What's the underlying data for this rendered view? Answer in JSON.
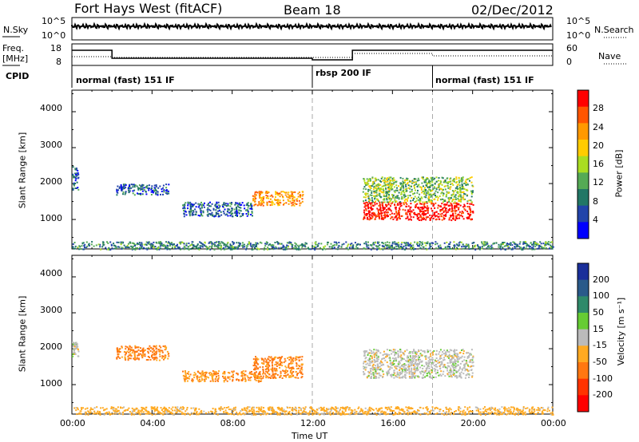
{
  "header": {
    "radar": "Fort Hays West (fitACF)",
    "beam": "Beam 18",
    "date": "02/Dec/2012"
  },
  "noise_panel": {
    "left_label": "N.Sky",
    "right_label": "N.Search",
    "left_ticks": [
      "10^5",
      "10^0"
    ],
    "right_ticks": [
      "10^5",
      "10^0"
    ]
  },
  "freq_panel": {
    "left_label_1": "Freq.",
    "left_label_2": "[MHz]",
    "right_label": "Nave",
    "left_ticks": [
      "18",
      "8"
    ],
    "right_ticks": [
      "60",
      "0"
    ]
  },
  "cpid": {
    "label": "CPID",
    "modes": [
      {
        "name": "normal (fast) 151 IF",
        "start": 0
      },
      {
        "name": "rbsp 200 IF",
        "start": 12
      },
      {
        "name": "normal (fast) 151 IF",
        "start": 18
      }
    ]
  },
  "power_panel": {
    "ylabel": "Slant Range [km]",
    "cbar_label": "Power [dB]",
    "cbar_ticks": [
      "28",
      "24",
      "20",
      "16",
      "12",
      "8",
      "4"
    ],
    "cbar_colors": [
      "#ff0000",
      "#ff5500",
      "#ff9900",
      "#ffcc00",
      "#aadd22",
      "#55aa55",
      "#227766",
      "#2244aa",
      "#0000ff"
    ]
  },
  "velocity_panel": {
    "ylabel": "Velocity [m s⁻¹]",
    "ylabel_axis": "Slant Range [km]",
    "cbar_ticks": [
      "200",
      "100",
      "50",
      "15",
      "-15",
      "-50",
      "-100",
      "-200"
    ],
    "cbar_colors": [
      "#1a2f9a",
      "#2a5a8a",
      "#2f8a6a",
      "#66cc33",
      "#bbbbbb",
      "#ffaa22",
      "#ff7711",
      "#ff3300",
      "#ff0000"
    ]
  },
  "x_axis": {
    "label": "Time UT",
    "ticks": [
      "00:00",
      "04:00",
      "08:00",
      "12:00",
      "16:00",
      "20:00",
      "00:00"
    ]
  },
  "y_axis_ticks": [
    "4000",
    "3000",
    "2000",
    "1000"
  ],
  "chart_data": [
    {
      "type": "heatmap",
      "title": "Fort Hays West (fitACF) Beam 18",
      "xlabel": "Time UT",
      "ylabel": "Slant Range [km]",
      "xlim": [
        0,
        24
      ],
      "ylim": [
        180,
        4600
      ],
      "colorbar": "Power [dB]",
      "features": [
        {
          "t": [
            0,
            0.3
          ],
          "range": [
            1800,
            2500
          ],
          "power": 6
        },
        {
          "t": [
            2.2,
            4.8
          ],
          "range": [
            1700,
            2000
          ],
          "power": 6
        },
        {
          "t": [
            5.5,
            9
          ],
          "range": [
            1100,
            1500
          ],
          "power": 6
        },
        {
          "t": [
            9,
            11.5
          ],
          "range": [
            1400,
            1800
          ],
          "power": 20
        },
        {
          "t": [
            14.5,
            20
          ],
          "range": [
            1000,
            1500
          ],
          "power": 28
        },
        {
          "t": [
            14.5,
            20
          ],
          "range": [
            1500,
            2200
          ],
          "power": 12
        },
        {
          "t": [
            0,
            24
          ],
          "range": [
            180,
            400
          ],
          "power": 8
        }
      ]
    },
    {
      "type": "heatmap",
      "title": "Fort Hays West (fitACF) Beam 18",
      "xlabel": "Time UT",
      "ylabel": "Slant Range [km]",
      "xlim": [
        0,
        24
      ],
      "ylim": [
        180,
        4600
      ],
      "colorbar": "Velocity [m s⁻¹]",
      "features": [
        {
          "t": [
            0,
            0.3
          ],
          "range": [
            1800,
            2200
          ],
          "velocity": 0
        },
        {
          "t": [
            2.2,
            4.8
          ],
          "range": [
            1700,
            2100
          ],
          "velocity": -60
        },
        {
          "t": [
            5.5,
            9.5
          ],
          "range": [
            1100,
            1400
          ],
          "velocity": -50
        },
        {
          "t": [
            9,
            11.5
          ],
          "range": [
            1200,
            1800
          ],
          "velocity": -60
        },
        {
          "t": [
            14.5,
            20
          ],
          "range": [
            1200,
            2000
          ],
          "velocity": 0
        },
        {
          "t": [
            0,
            24
          ],
          "range": [
            180,
            400
          ],
          "velocity": -30
        }
      ]
    }
  ]
}
